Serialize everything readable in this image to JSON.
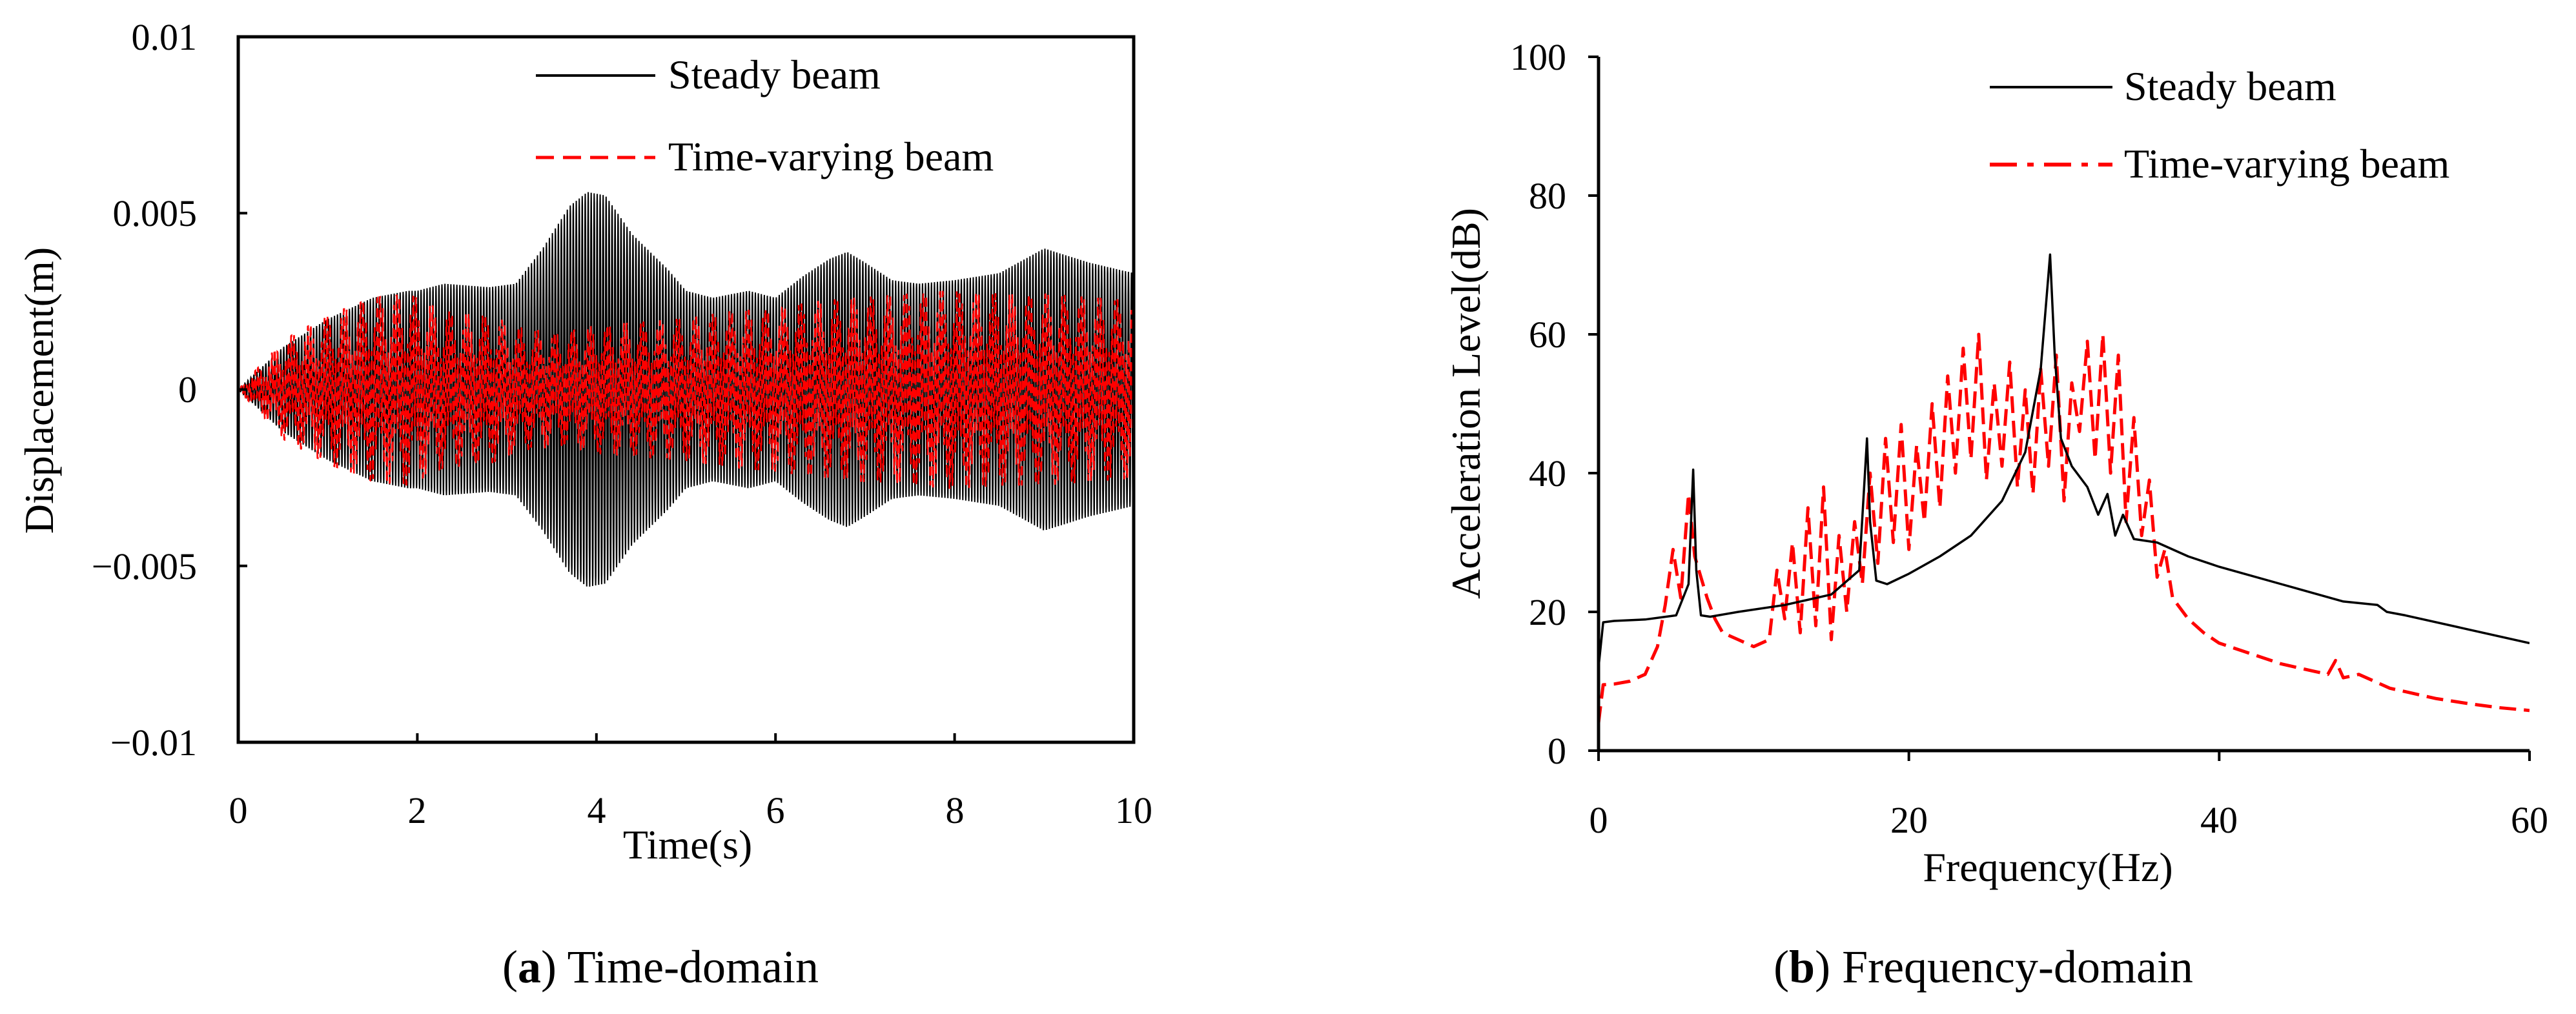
{
  "chart_data": [
    {
      "type": "line",
      "panel": "a",
      "caption": {
        "letter": "a",
        "text": " Time-domain"
      },
      "xlabel": "Time(s)",
      "ylabel": "Displacement(m)",
      "xlim": [
        0,
        10
      ],
      "ylim": [
        -0.01,
        0.01
      ],
      "xticks": [
        "0",
        "2",
        "4",
        "6",
        "8",
        "10"
      ],
      "yticks": [
        "0.01",
        "0.005",
        "0",
        "−0.005",
        "−0.01"
      ],
      "grid": false,
      "legend": "top-right",
      "oscillation_frequency_hz": 30,
      "series": [
        {
          "name": "Steady beam",
          "color": "#000000",
          "style": "solid",
          "envelope": {
            "t": [
              0,
              0.5,
              1.0,
              1.5,
              1.9,
              2.0,
              2.3,
              2.8,
              3.1,
              3.4,
              3.7,
              3.9,
              4.1,
              4.4,
              4.8,
              5.0,
              5.3,
              5.7,
              6.0,
              6.3,
              6.6,
              6.8,
              7.0,
              7.3,
              7.6,
              8.0,
              8.5,
              9.0,
              9.5,
              10.0
            ],
            "amp": [
              0,
              0.0012,
              0.002,
              0.0026,
              0.0028,
              0.0028,
              0.003,
              0.0029,
              0.003,
              0.004,
              0.0052,
              0.0056,
              0.0055,
              0.0044,
              0.0034,
              0.0028,
              0.0026,
              0.0028,
              0.0026,
              0.0032,
              0.0037,
              0.0039,
              0.0036,
              0.0031,
              0.003,
              0.0031,
              0.0033,
              0.004,
              0.0036,
              0.0033
            ]
          }
        },
        {
          "name": "Time-varying beam",
          "color": "#ff0000",
          "style": "dashed",
          "envelope": {
            "t": [
              0,
              0.5,
              1.0,
              1.5,
              1.9,
              2.3,
              2.8,
              3.2,
              3.6,
              4.0,
              4.5,
              5.0,
              5.5,
              6.0,
              6.5,
              7.0,
              7.5,
              8.0,
              8.5,
              9.0,
              9.5,
              10.0
            ],
            "amp": [
              0,
              0.0014,
              0.0021,
              0.0026,
              0.0027,
              0.0022,
              0.0021,
              0.0017,
              0.0016,
              0.0018,
              0.0019,
              0.002,
              0.0022,
              0.0023,
              0.0025,
              0.0026,
              0.0027,
              0.0028,
              0.0027,
              0.0027,
              0.0026,
              0.0025
            ]
          }
        }
      ]
    },
    {
      "type": "line",
      "panel": "b",
      "caption": {
        "letter": "b",
        "text": " Frequency-domain"
      },
      "xlabel": "Frequency(Hz)",
      "ylabel": "Acceleration Level(dB)",
      "xlim": [
        0,
        60
      ],
      "ylim": [
        0,
        100
      ],
      "xticks": [
        "0",
        "20",
        "40",
        "60"
      ],
      "yticks": [
        "100",
        "80",
        "60",
        "40",
        "20",
        "0"
      ],
      "grid": false,
      "legend": "top-right",
      "series": [
        {
          "name": "Steady beam",
          "color": "#000000",
          "style": "solid",
          "x": [
            0,
            0.3,
            1,
            3,
            5,
            5.8,
            6.1,
            6.3,
            6.6,
            7.2,
            9,
            12,
            15,
            16.8,
            17.3,
            17.5,
            17.9,
            18.6,
            20,
            22,
            24,
            26,
            27.5,
            28.5,
            29.1,
            29.4,
            29.8,
            30.5,
            31.5,
            32.2,
            32.8,
            33.3,
            33.8,
            34.5,
            36,
            38,
            40,
            44,
            48,
            50.2,
            50.5,
            50.8,
            52,
            56,
            60
          ],
          "y": [
            12,
            18.5,
            18.7,
            18.9,
            19.5,
            24,
            40.5,
            26,
            19.5,
            19.3,
            20,
            21,
            22.5,
            26,
            45,
            33,
            24.5,
            24,
            25.5,
            28,
            31,
            36,
            43,
            55,
            71.5,
            57,
            45,
            41,
            38,
            34,
            37,
            31,
            34,
            30.5,
            30,
            28,
            26.5,
            24,
            21.5,
            21,
            20.5,
            20,
            19.5,
            17.5,
            15.5
          ]
        },
        {
          "name": "Time-varying beam",
          "color": "#ff0000",
          "style": "dashed",
          "x": [
            0,
            0.3,
            1,
            2,
            3,
            3.8,
            4.3,
            4.8,
            5.3,
            5.8,
            6.2,
            6.6,
            7.0,
            7.5,
            8.0,
            9,
            10,
            11,
            11.5,
            12.0,
            12.5,
            13.0,
            13.5,
            14.0,
            14.5,
            15.0,
            15.5,
            16.0,
            16.5,
            17.0,
            17.5,
            18.0,
            18.5,
            19.0,
            19.5,
            20.0,
            20.5,
            21.0,
            21.5,
            22.0,
            22.5,
            23.0,
            23.5,
            24.0,
            24.5,
            25.0,
            25.5,
            26.0,
            26.5,
            27.0,
            27.5,
            28.0,
            28.5,
            29.0,
            29.5,
            30.0,
            30.5,
            31.0,
            31.5,
            32.0,
            32.5,
            33.0,
            33.5,
            34.0,
            34.5,
            35.0,
            35.5,
            36.0,
            36.5,
            37.0,
            38,
            39,
            40,
            42,
            44,
            46,
            47,
            47.5,
            48,
            49,
            50,
            51,
            52,
            54,
            56,
            58,
            60
          ],
          "y": [
            4,
            9.5,
            9.6,
            10,
            11,
            15,
            21,
            29,
            22,
            37,
            28,
            25,
            22,
            19,
            17,
            16,
            15,
            16,
            26,
            19,
            30,
            17,
            35,
            18,
            38,
            16,
            31,
            20,
            33,
            24,
            40,
            27,
            45,
            30,
            47,
            29,
            44,
            33,
            50,
            35,
            54,
            40,
            58,
            42,
            60,
            39,
            53,
            41,
            56,
            38,
            52,
            37,
            55,
            41,
            57,
            36,
            53,
            46,
            59,
            42,
            60,
            40,
            57,
            33,
            48,
            31,
            39,
            25,
            29,
            22,
            19,
            17,
            15.5,
            14,
            12.5,
            11.5,
            11,
            13,
            10.5,
            11,
            10,
            9,
            8.5,
            7.5,
            6.8,
            6.2,
            5.8
          ]
        }
      ]
    }
  ]
}
